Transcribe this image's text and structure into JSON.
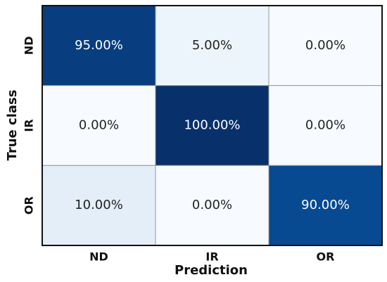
{
  "chart_data": {
    "type": "heatmap",
    "x_label": "Prediction",
    "y_label": "True class",
    "x_categories": [
      "ND",
      "IR",
      "OR"
    ],
    "y_categories": [
      "ND",
      "IR",
      "OR"
    ],
    "values": [
      [
        95,
        5,
        0
      ],
      [
        0,
        100,
        0
      ],
      [
        10,
        0,
        90
      ]
    ],
    "value_labels": [
      [
        "95.00%",
        "5.00%",
        "0.00%"
      ],
      [
        "0.00%",
        "100.00%",
        "0.00%"
      ],
      [
        "10.00%",
        "0.00%",
        "90.00%"
      ]
    ],
    "colormap": "Blues"
  }
}
